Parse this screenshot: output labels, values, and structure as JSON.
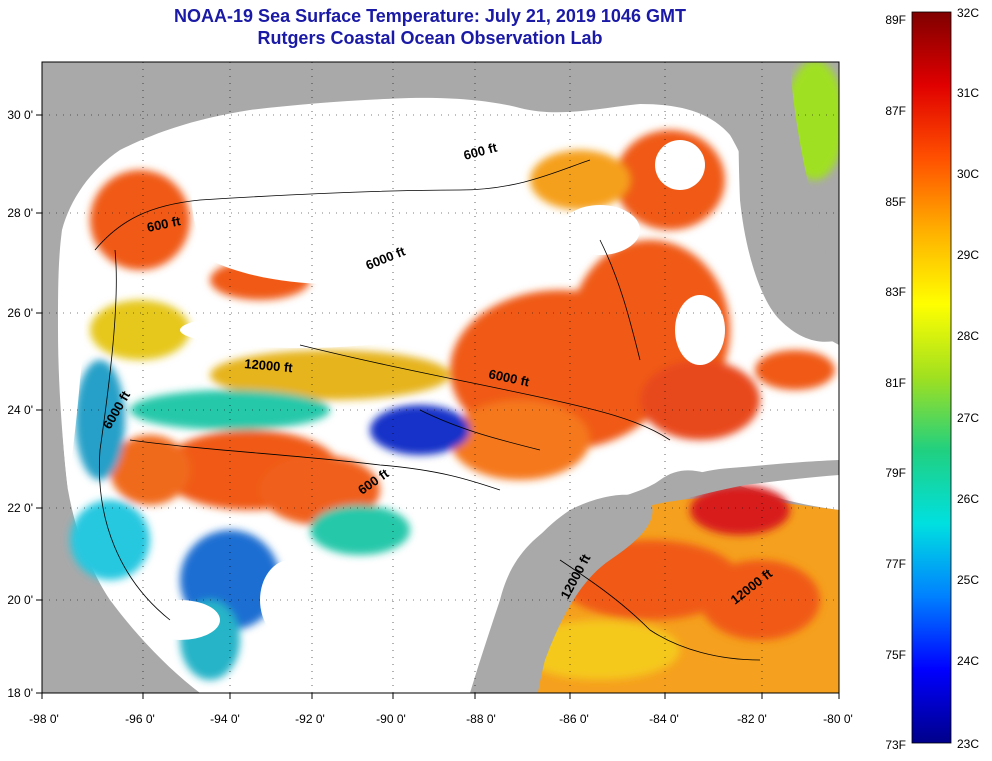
{
  "title": {
    "line1": "NOAA-19 Sea Surface Temperature:  July 21, 2019 1046 GMT",
    "line2": "Rutgers Coastal Ocean Observation Lab"
  },
  "map": {
    "lon_ticks": [
      "-98 0'",
      "-96 0'",
      "-94 0'",
      "-92 0'",
      "-90 0'",
      "-88 0'",
      "-86 0'",
      "-84 0'",
      "-82 0'",
      "-80 0'"
    ],
    "lat_ticks": [
      "30 0'",
      "28 0'",
      "26 0'",
      "24 0'",
      "22 0'",
      "20 0'",
      "18 0'"
    ],
    "contour_labels": [
      "600 ft",
      "600 ft",
      "6000 ft",
      "12000 ft",
      "6000 ft",
      "6000 ft",
      "600 ft",
      "12000 ft",
      "12000 ft"
    ],
    "colors": {
      "land": "#a9a9a9",
      "cloud": "#ffffff",
      "sea_hot": "#f05a14",
      "sea_warm": "#f5a01e",
      "sea_mid": "#e6e61e",
      "sea_cool": "#28c8aa",
      "sea_cold": "#1432c8"
    }
  },
  "colorbar": {
    "f_labels": [
      "89F",
      "87F",
      "85F",
      "83F",
      "81F",
      "79F",
      "77F",
      "75F",
      "73F"
    ],
    "c_labels": [
      "32C",
      "31C",
      "30C",
      "29C",
      "28C",
      "27C",
      "26C",
      "25C",
      "24C",
      "23C"
    ],
    "stops": [
      "#00008a",
      "#0000ff",
      "#0080ff",
      "#00e0e0",
      "#20d080",
      "#a0e020",
      "#ffff00",
      "#ffb000",
      "#ff5000",
      "#e00000",
      "#800000"
    ]
  }
}
